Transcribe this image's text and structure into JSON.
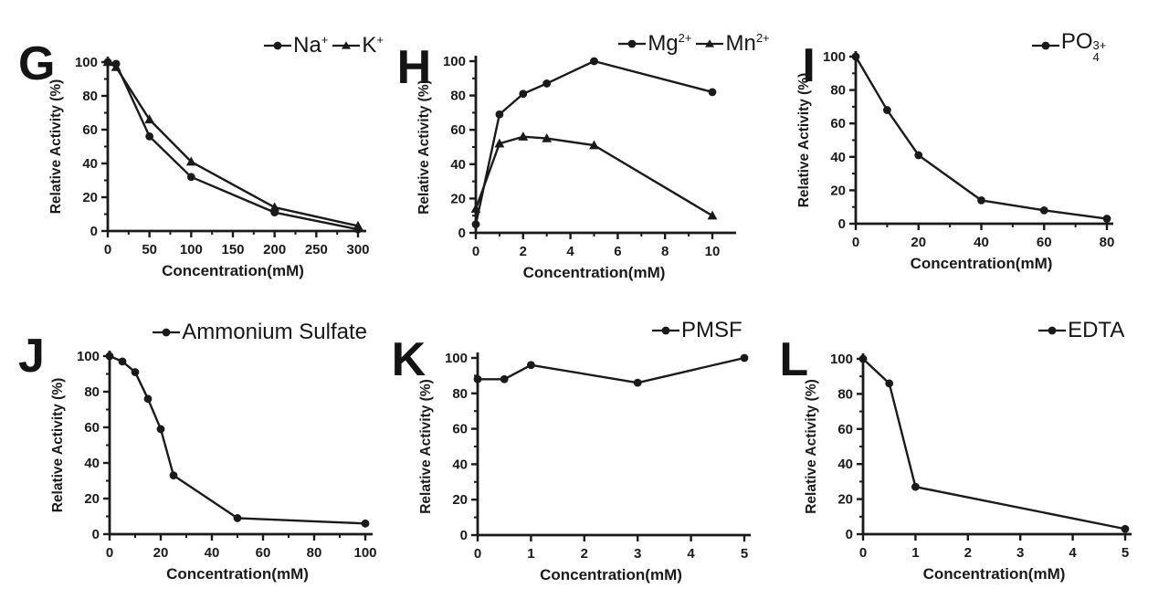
{
  "figure": {
    "background": "#ffffff",
    "ink_color": "#1a1a1a"
  },
  "chart_data": [
    {
      "type": "line",
      "panel": "G",
      "xlabel": "Concentration(mM)",
      "ylabel": "Relative Activity (%)",
      "xlim": [
        0,
        300
      ],
      "ylim": [
        0,
        100
      ],
      "xticks": [
        0,
        50,
        100,
        150,
        200,
        250,
        300
      ],
      "x_minor_step": 25,
      "yticks": [
        0,
        20,
        40,
        60,
        80,
        100
      ],
      "y_minor_step": 10,
      "legend_pos": "top-right",
      "series": [
        {
          "name": "Na+",
          "label_base": "Na",
          "label_sup": "+",
          "marker": "circle",
          "x": [
            0,
            10,
            50,
            100,
            200,
            300
          ],
          "y": [
            100,
            99,
            56,
            32,
            11,
            1
          ]
        },
        {
          "name": "K+",
          "label_base": "K",
          "label_sup": "+",
          "marker": "triangle",
          "x": [
            0,
            10,
            50,
            100,
            200,
            300
          ],
          "y": [
            100,
            97,
            66,
            41,
            14,
            3
          ]
        }
      ]
    },
    {
      "type": "line",
      "panel": "H",
      "xlabel": "Concentration(mM)",
      "ylabel": "Relative Activity (%)",
      "xlim": [
        0,
        10
      ],
      "ylim": [
        0,
        100
      ],
      "xticks": [
        0,
        2,
        4,
        6,
        8,
        10
      ],
      "x_minor_step": 1,
      "yticks": [
        0,
        20,
        40,
        60,
        80,
        100
      ],
      "y_minor_step": 10,
      "legend_pos": "top-right",
      "series": [
        {
          "name": "Mg2+",
          "label_base": "Mg",
          "label_sup": "2+",
          "marker": "circle",
          "x": [
            0,
            1,
            2,
            3,
            5,
            10
          ],
          "y": [
            5,
            69,
            81,
            87,
            100,
            82
          ]
        },
        {
          "name": "Mn2+",
          "label_base": "Mn",
          "label_sup": "2+",
          "marker": "triangle",
          "x": [
            0,
            1,
            2,
            3,
            5,
            10
          ],
          "y": [
            14,
            52,
            56,
            55,
            51,
            10
          ]
        }
      ]
    },
    {
      "type": "line",
      "panel": "I",
      "xlabel": "Concentration(mM)",
      "ylabel": "Relative Activity (%)",
      "xlim": [
        0,
        80
      ],
      "ylim": [
        0,
        100
      ],
      "xticks": [
        0,
        20,
        40,
        60,
        80
      ],
      "x_minor_step": 10,
      "yticks": [
        0,
        20,
        40,
        60,
        80,
        100
      ],
      "y_minor_step": 10,
      "legend_pos": "top-right",
      "series": [
        {
          "name": "PO4 3+",
          "label_base": "PO",
          "label_sub": "4",
          "label_sup": "3+",
          "marker": "circle",
          "x": [
            0,
            10,
            20,
            40,
            60,
            80
          ],
          "y": [
            100,
            68,
            41,
            14,
            8,
            3
          ]
        }
      ]
    },
    {
      "type": "line",
      "panel": "J",
      "xlabel": "Concentration(mM)",
      "ylabel": "Relative Activity (%)",
      "xlim": [
        0,
        100
      ],
      "ylim": [
        0,
        100
      ],
      "xticks": [
        0,
        20,
        40,
        60,
        80,
        100
      ],
      "x_minor_step": 10,
      "yticks": [
        0,
        20,
        40,
        60,
        80,
        100
      ],
      "y_minor_step": 10,
      "legend_pos": "top-right",
      "series": [
        {
          "name": "Ammonium Sulfate",
          "label_base": "Ammonium Sulfate",
          "marker": "circle",
          "x": [
            0,
            5,
            10,
            15,
            20,
            25,
            50,
            100
          ],
          "y": [
            100,
            97,
            91,
            76,
            59,
            33,
            9,
            6
          ]
        }
      ]
    },
    {
      "type": "line",
      "panel": "K",
      "xlabel": "Concentration(mM)",
      "ylabel": "Relative Activity (%)",
      "xlim": [
        0,
        5
      ],
      "ylim": [
        0,
        100
      ],
      "xticks": [
        0,
        1,
        2,
        3,
        4,
        5
      ],
      "x_minor_step": null,
      "yticks": [
        0,
        20,
        40,
        60,
        80,
        100
      ],
      "y_minor_step": 10,
      "legend_pos": "top-right",
      "series": [
        {
          "name": "PMSF",
          "label_base": "PMSF",
          "marker": "circle",
          "x": [
            0,
            0.5,
            1,
            3,
            5
          ],
          "y": [
            88,
            88,
            96,
            86,
            100
          ]
        }
      ]
    },
    {
      "type": "line",
      "panel": "L",
      "xlabel": "Concentration(mM)",
      "ylabel": "Relative Activity (%)",
      "xlim": [
        0,
        5
      ],
      "ylim": [
        0,
        100
      ],
      "xticks": [
        0,
        1,
        2,
        3,
        4,
        5
      ],
      "x_minor_step": null,
      "yticks": [
        0,
        20,
        40,
        60,
        80,
        100
      ],
      "y_minor_step": 10,
      "legend_pos": "top-right",
      "series": [
        {
          "name": "EDTA",
          "label_base": "EDTA",
          "marker": "circle",
          "x": [
            0,
            0.5,
            1,
            5
          ],
          "y": [
            100,
            86,
            27,
            3
          ]
        }
      ]
    }
  ]
}
